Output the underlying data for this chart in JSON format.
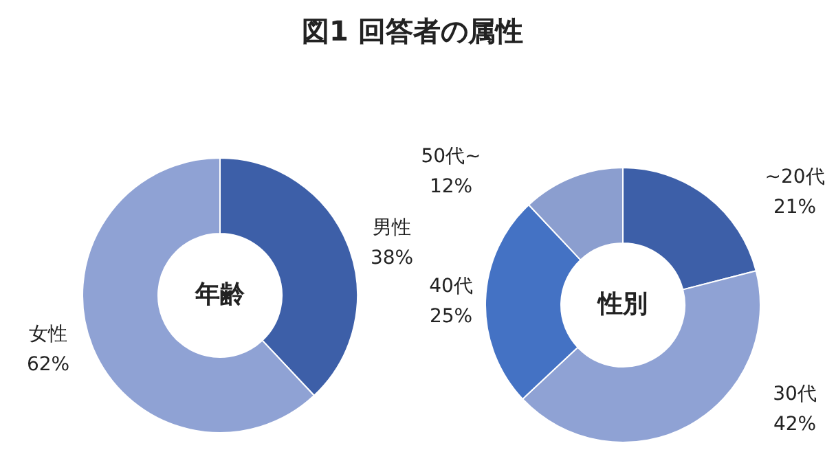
{
  "chart_data": [
    {
      "type": "donut",
      "title": "図1 回答者の属性",
      "annotations": [
        "年齢"
      ],
      "categories": [
        "男性",
        "女性"
      ],
      "values": [
        38,
        62
      ],
      "value_labels": [
        "38%",
        "62%"
      ],
      "colors": [
        "#3d5fa8",
        "#8fa2d4"
      ]
    },
    {
      "type": "donut",
      "annotations": [
        "性別"
      ],
      "categories": [
        "~20代",
        "30代",
        "40代",
        "50代~"
      ],
      "values": [
        21,
        42,
        25,
        12
      ],
      "value_labels": [
        "21%",
        "42%",
        "25%",
        "12%"
      ],
      "colors": [
        "#3d5fa8",
        "#8fa2d4",
        "#4472c4",
        "#8b9ecf"
      ]
    }
  ]
}
